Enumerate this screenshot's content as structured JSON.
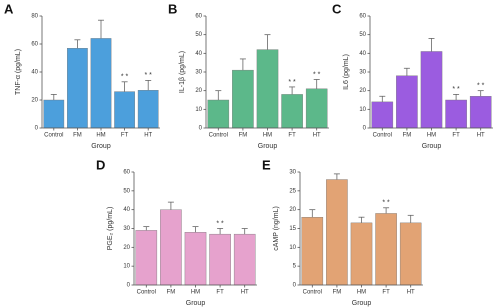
{
  "chart_data": [
    {
      "type": "bar",
      "label": "A",
      "y_label": "TNF-α (pg/mL)",
      "x_label": "Group",
      "categories": [
        "Control",
        "FM",
        "HM",
        "FT",
        "HT"
      ],
      "values": [
        20,
        57,
        64,
        26,
        27
      ],
      "errors": [
        4,
        6,
        13,
        7,
        7
      ],
      "significance": [
        null,
        null,
        null,
        "* *",
        "* *"
      ],
      "color": "#4c9fdc",
      "ylim": [
        0,
        80
      ],
      "yticks": [
        0,
        20,
        40,
        60,
        80
      ]
    },
    {
      "type": "bar",
      "label": "B",
      "y_label": "IL-1β (pg/mL)",
      "x_label": "Group",
      "categories": [
        "Control",
        "FM",
        "HM",
        "FT",
        "HT"
      ],
      "values": [
        15,
        31,
        42,
        18,
        21
      ],
      "errors": [
        5,
        6,
        8,
        4,
        5
      ],
      "significance": [
        null,
        null,
        null,
        "* *",
        "* *"
      ],
      "color": "#5cb88a",
      "ylim": [
        0,
        60
      ],
      "yticks": [
        0,
        10,
        20,
        30,
        40,
        50,
        60
      ]
    },
    {
      "type": "bar",
      "label": "C",
      "y_label": "IL6 (pg/mL)",
      "x_label": "Group",
      "categories": [
        "Control",
        "FM",
        "HM",
        "FT",
        "HT"
      ],
      "values": [
        14,
        28,
        41,
        15,
        17
      ],
      "errors": [
        3,
        4,
        7,
        3,
        3
      ],
      "significance": [
        null,
        null,
        null,
        "* *",
        "* *"
      ],
      "color": "#9b5ce0",
      "ylim": [
        0,
        60
      ],
      "yticks": [
        0,
        10,
        20,
        30,
        40,
        50,
        60
      ]
    },
    {
      "type": "bar",
      "label": "D",
      "y_label": "PGE₂ (pg/mL)",
      "x_label": "Group",
      "categories": [
        "Control",
        "FM",
        "HM",
        "FT",
        "HT"
      ],
      "values": [
        29,
        40,
        28,
        27,
        27
      ],
      "errors": [
        2,
        4,
        3,
        3,
        3
      ],
      "significance": [
        null,
        null,
        null,
        "* *",
        null
      ],
      "color": "#e6a2cd",
      "ylim": [
        0,
        60
      ],
      "yticks": [
        0,
        10,
        20,
        30,
        40,
        50,
        60
      ]
    },
    {
      "type": "bar",
      "label": "E",
      "y_label": "cAMP (ng/mL)",
      "x_label": "Group",
      "categories": [
        "Control",
        "FM",
        "HM",
        "FT",
        "HT"
      ],
      "values": [
        18,
        28,
        16.5,
        19,
        16.5
      ],
      "errors": [
        2,
        1.5,
        1.5,
        1.5,
        2
      ],
      "significance": [
        null,
        null,
        null,
        "* *",
        null
      ],
      "color": "#e2a374",
      "ylim": [
        0,
        30
      ],
      "yticks": [
        0,
        5,
        10,
        15,
        20,
        25,
        30
      ]
    }
  ]
}
